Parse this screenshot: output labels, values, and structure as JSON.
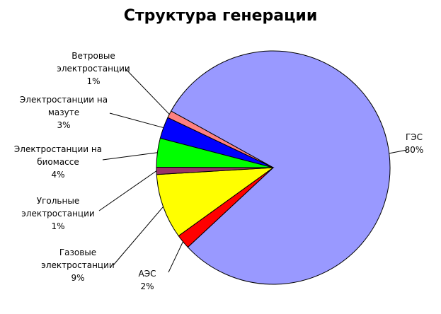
{
  "chart_data": {
    "type": "pie",
    "title": "Структура генерации",
    "categories": [
      "ГЭС",
      "АЭС",
      "Газовые электростанции",
      "Угольные электростанции",
      "Электростанции на биомассе",
      "Электростанции на мазуте",
      "Ветровые электростанции"
    ],
    "values": [
      80,
      2,
      9,
      1,
      4,
      3,
      1
    ],
    "value_labels": [
      "80%",
      "2%",
      "9%",
      "1%",
      "4%",
      "3%",
      "1%"
    ],
    "colors": [
      "#9999ff",
      "#ff0000",
      "#ffff00",
      "#993366",
      "#00ff00",
      "#0000ff",
      "#ff8080"
    ]
  }
}
